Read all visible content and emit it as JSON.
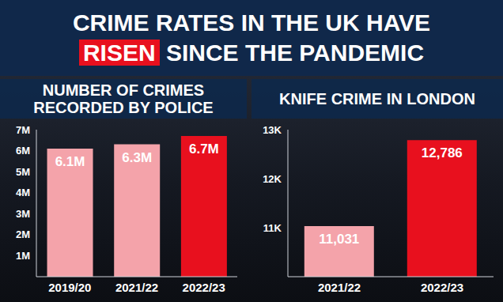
{
  "title": "CRIME RATES IN THE UK HAVE RISEN SINCE THE PANDEMIC",
  "highlight": "RISEN",
  "chart_data": [
    {
      "type": "bar",
      "title": "NUMBER OF CRIMES RECORDED BY POLICE",
      "categories": [
        "2019/20",
        "2021/22",
        "2022/23"
      ],
      "values": [
        6100000,
        6300000,
        6700000
      ],
      "value_labels": [
        "6.1M",
        "6.3M",
        "6.7M"
      ],
      "colors": [
        "#f4a3aa",
        "#f4a3aa",
        "#e8101e"
      ],
      "ylim": [
        0,
        7000000
      ],
      "yticks": [
        {
          "value": 1000000,
          "label": "1M"
        },
        {
          "value": 2000000,
          "label": "2M"
        },
        {
          "value": 3000000,
          "label": "3M"
        },
        {
          "value": 4000000,
          "label": "4M"
        },
        {
          "value": 5000000,
          "label": "5M"
        },
        {
          "value": 6000000,
          "label": "6M"
        },
        {
          "value": 7000000,
          "label": "7M"
        }
      ],
      "grid": false,
      "data_labels": true
    },
    {
      "type": "bar",
      "title": "KNIFE CRIME IN LONDON",
      "categories": [
        "2021/22",
        "2022/23"
      ],
      "values": [
        11031,
        12786
      ],
      "value_labels": [
        "11,031",
        "12,786"
      ],
      "colors": [
        "#f4a3aa",
        "#e8101e"
      ],
      "ylim": [
        10000,
        13000
      ],
      "yticks": [
        {
          "value": 11000,
          "label": "11K"
        },
        {
          "value": 12000,
          "label": "12K"
        },
        {
          "value": 13000,
          "label": "13K"
        }
      ],
      "grid": false,
      "data_labels": true
    }
  ]
}
